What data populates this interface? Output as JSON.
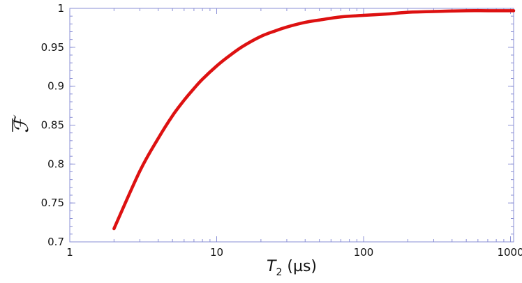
{
  "chart_data": {
    "type": "line",
    "title": "",
    "xlabel": {
      "main": "T",
      "subscript": "2",
      "unit": "(µs)"
    },
    "ylabel": "ℱ",
    "x_scale": "log",
    "xlim": [
      1,
      1050
    ],
    "ylim": [
      0.7,
      1.0
    ],
    "x_ticks": [
      1,
      10,
      100,
      1000
    ],
    "x_tick_labels": [
      "1",
      "10",
      "100",
      "1000"
    ],
    "y_ticks": [
      0.7,
      0.75,
      0.8,
      0.85,
      0.9,
      0.95,
      1.0
    ],
    "y_tick_labels": [
      "0.7",
      "0.75",
      "0.8",
      "0.85",
      "0.9",
      "0.95",
      "1"
    ],
    "grid": false,
    "legend": "none",
    "series": [
      {
        "color": "#dd1111",
        "x": [
          2,
          3,
          4,
          5,
          6,
          7,
          8,
          10,
          12,
          15,
          20,
          25,
          30,
          40,
          50,
          70,
          100,
          150,
          200,
          300,
          500,
          700,
          1050
        ],
        "y": [
          0.717,
          0.791,
          0.833,
          0.862,
          0.882,
          0.897,
          0.909,
          0.926,
          0.938,
          0.951,
          0.964,
          0.971,
          0.976,
          0.982,
          0.985,
          0.989,
          0.991,
          0.993,
          0.995,
          0.996,
          0.997,
          0.997,
          0.997
        ]
      }
    ]
  }
}
